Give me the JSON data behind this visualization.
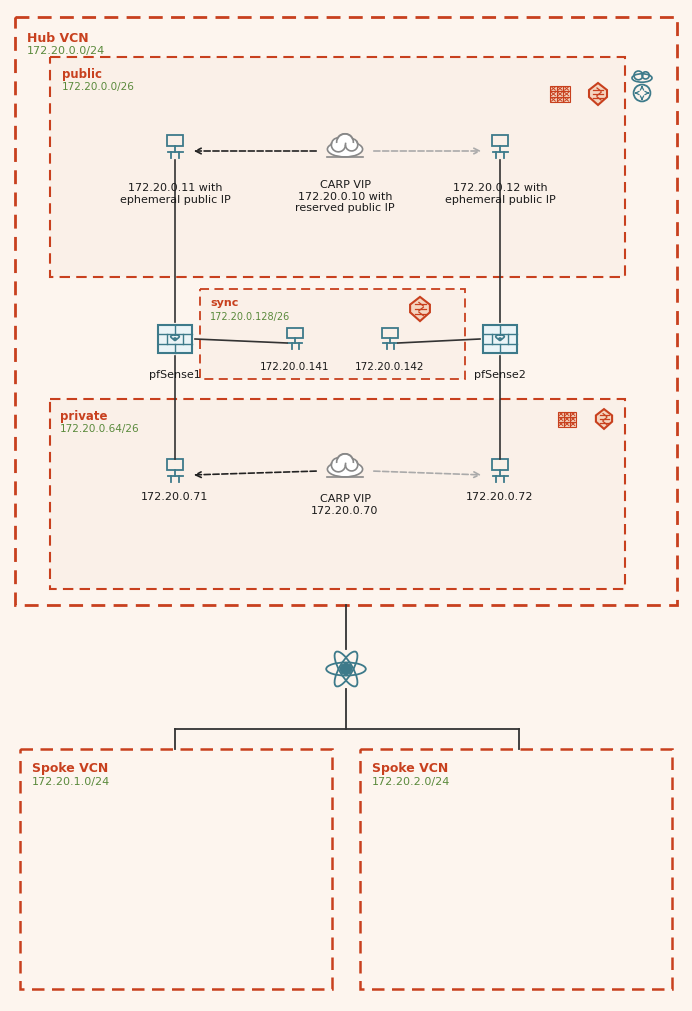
{
  "bg_color": "#fdf5ee",
  "orange": "#c8401e",
  "green": "#5a8a3c",
  "teal": "#3d7a8a",
  "light_fill": "#fdf5ee",
  "inner_fill": "#faf0e8",
  "hub_vcn_label": "Hub VCN",
  "hub_vcn_subnet": "172.20.0.0/24",
  "public_label": "public",
  "public_subnet": "172.20.0.0/26",
  "sync_label": "sync",
  "sync_subnet": "172.20.0.128/26",
  "private_label": "private",
  "private_subnet": "172.20.0.64/26",
  "left_vnic_public_ip": "172.20.0.11 with\nephemeral public IP",
  "right_vnic_public_ip": "172.20.0.12 with\nephemeral public IP",
  "carp_vip_public": "CARP VIP\n172.20.0.10 with\nreserved public IP",
  "pfsense1_label": "pfSense1",
  "pfsense2_label": "pfSense2",
  "sync_left_ip": "172.20.0.141",
  "sync_right_ip": "172.20.0.142",
  "left_vnic_private": "172.20.0.71",
  "right_vnic_private": "172.20.0.72",
  "carp_vip_private": "CARP VIP\n172.20.0.70",
  "spoke1_label": "Spoke VCN",
  "spoke1_subnet": "172.20.1.0/24",
  "spoke2_label": "Spoke VCN",
  "spoke2_subnet": "172.20.2.0/24"
}
